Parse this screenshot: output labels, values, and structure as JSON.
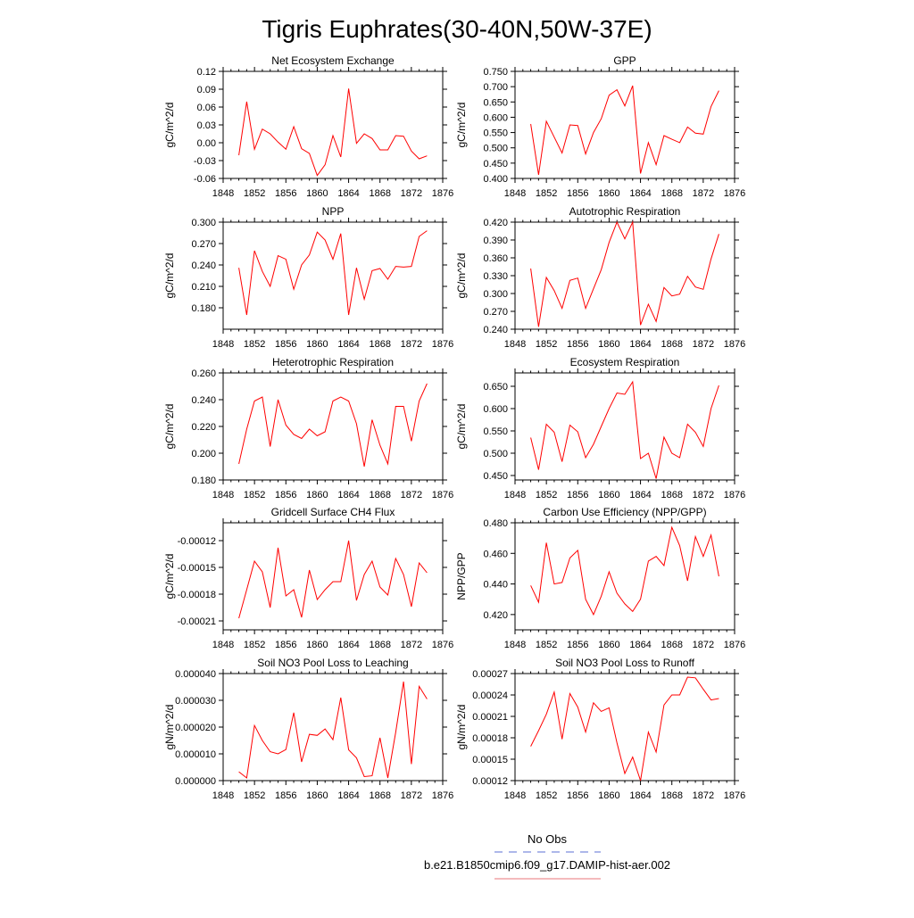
{
  "page": {
    "title": "Tigris Euphrates(30-40N,50W-37E)"
  },
  "legend": {
    "items": [
      {
        "label": "No Obs",
        "color": "#5b6fd6",
        "dash": true
      },
      {
        "label": "b.e21.B1850cmip6.f09_g17.DAMIP-hist-aer.002",
        "color": "#e8767a",
        "dash": false
      }
    ]
  },
  "chart_data": [
    {
      "type": "line",
      "title": "Net Ecosystem Exchange",
      "ylabel": "gC/m^2/d",
      "xlim": [
        1848,
        1876
      ],
      "xticks": [
        1848,
        1852,
        1856,
        1860,
        1864,
        1868,
        1872,
        1876
      ],
      "ylim": [
        -0.06,
        0.12
      ],
      "yticks": [
        "-0.06",
        "-0.03",
        "0.00",
        "0.03",
        "0.06",
        "0.09",
        "0.12"
      ],
      "series": [
        {
          "color": "#ff0000",
          "x": [
            1850,
            1851,
            1852,
            1853,
            1854,
            1855,
            1856,
            1857,
            1858,
            1859,
            1860,
            1861,
            1862,
            1863,
            1864,
            1865,
            1866,
            1867,
            1868,
            1869,
            1870,
            1871,
            1872,
            1873,
            1874
          ],
          "y": [
            -0.021,
            0.069,
            -0.011,
            0.023,
            0.015,
            0.001,
            -0.011,
            0.027,
            -0.01,
            -0.018,
            -0.055,
            -0.037,
            0.012,
            -0.024,
            0.091,
            -0.001,
            0.015,
            0.007,
            -0.012,
            -0.012,
            0.012,
            0.011,
            -0.014,
            -0.027,
            -0.022
          ]
        }
      ]
    },
    {
      "type": "line",
      "title": "GPP",
      "ylabel": "gC/m^2/d",
      "xlim": [
        1848,
        1876
      ],
      "xticks": [
        1848,
        1852,
        1856,
        1860,
        1864,
        1868,
        1872,
        1876
      ],
      "ylim": [
        0.4,
        0.75
      ],
      "yticks": [
        "0.400",
        "0.450",
        "0.500",
        "0.550",
        "0.600",
        "0.650",
        "0.700",
        "0.750"
      ],
      "series": [
        {
          "color": "#ff0000",
          "x": [
            1850,
            1851,
            1852,
            1853,
            1854,
            1855,
            1856,
            1857,
            1858,
            1859,
            1860,
            1861,
            1862,
            1863,
            1864,
            1865,
            1866,
            1867,
            1868,
            1869,
            1870,
            1871,
            1872,
            1873,
            1874
          ],
          "y": [
            0.578,
            0.412,
            0.587,
            0.535,
            0.483,
            0.575,
            0.573,
            0.48,
            0.55,
            0.595,
            0.672,
            0.69,
            0.637,
            0.703,
            0.416,
            0.517,
            0.445,
            0.54,
            0.528,
            0.517,
            0.568,
            0.548,
            0.545,
            0.635,
            0.687
          ]
        }
      ]
    },
    {
      "type": "line",
      "title": "NPP",
      "ylabel": "gC/m^2/d",
      "xlim": [
        1848,
        1876
      ],
      "xticks": [
        1848,
        1852,
        1856,
        1860,
        1864,
        1868,
        1872,
        1876
      ],
      "ylim": [
        0.15,
        0.3
      ],
      "yticks": [
        "0.180",
        "0.210",
        "0.240",
        "0.270",
        "0.300"
      ],
      "series": [
        {
          "color": "#ff0000",
          "x": [
            1850,
            1851,
            1852,
            1853,
            1854,
            1855,
            1856,
            1857,
            1858,
            1859,
            1860,
            1861,
            1862,
            1863,
            1864,
            1865,
            1866,
            1867,
            1868,
            1869,
            1870,
            1871,
            1872,
            1873,
            1874
          ],
          "y": [
            0.236,
            0.17,
            0.26,
            0.231,
            0.21,
            0.253,
            0.248,
            0.206,
            0.24,
            0.254,
            0.286,
            0.275,
            0.248,
            0.284,
            0.17,
            0.236,
            0.192,
            0.232,
            0.235,
            0.22,
            0.238,
            0.237,
            0.238,
            0.28,
            0.288
          ]
        }
      ]
    },
    {
      "type": "line",
      "title": "Autotrophic Respiration",
      "ylabel": "gC/m^2/d",
      "xlim": [
        1848,
        1876
      ],
      "xticks": [
        1848,
        1852,
        1856,
        1860,
        1864,
        1868,
        1872,
        1876
      ],
      "ylim": [
        0.24,
        0.42
      ],
      "yticks": [
        "0.240",
        "0.270",
        "0.300",
        "0.330",
        "0.360",
        "0.390",
        "0.420"
      ],
      "series": [
        {
          "color": "#ff0000",
          "x": [
            1850,
            1851,
            1852,
            1853,
            1854,
            1855,
            1856,
            1857,
            1858,
            1859,
            1860,
            1861,
            1862,
            1863,
            1864,
            1865,
            1866,
            1867,
            1868,
            1869,
            1870,
            1871,
            1872,
            1873,
            1874
          ],
          "y": [
            0.342,
            0.244,
            0.327,
            0.305,
            0.275,
            0.322,
            0.326,
            0.275,
            0.308,
            0.34,
            0.386,
            0.42,
            0.392,
            0.42,
            0.247,
            0.282,
            0.253,
            0.31,
            0.296,
            0.299,
            0.329,
            0.311,
            0.307,
            0.358,
            0.4
          ]
        }
      ]
    },
    {
      "type": "line",
      "title": "Heterotrophic Respiration",
      "ylabel": "gC/m^2/d",
      "xlim": [
        1848,
        1876
      ],
      "xticks": [
        1848,
        1852,
        1856,
        1860,
        1864,
        1868,
        1872,
        1876
      ],
      "ylim": [
        0.18,
        0.26
      ],
      "yticks": [
        "0.180",
        "0.200",
        "0.220",
        "0.240",
        "0.260"
      ],
      "series": [
        {
          "color": "#ff0000",
          "x": [
            1850,
            1851,
            1852,
            1853,
            1854,
            1855,
            1856,
            1857,
            1858,
            1859,
            1860,
            1861,
            1862,
            1863,
            1864,
            1865,
            1866,
            1867,
            1868,
            1869,
            1870,
            1871,
            1872,
            1873,
            1874
          ],
          "y": [
            0.192,
            0.218,
            0.239,
            0.242,
            0.205,
            0.24,
            0.221,
            0.214,
            0.211,
            0.218,
            0.213,
            0.216,
            0.239,
            0.242,
            0.239,
            0.222,
            0.19,
            0.225,
            0.206,
            0.192,
            0.235,
            0.235,
            0.209,
            0.239,
            0.252
          ]
        }
      ]
    },
    {
      "type": "line",
      "title": "Ecosystem Respiration",
      "ylabel": "gC/m^2/d",
      "xlim": [
        1848,
        1876
      ],
      "xticks": [
        1848,
        1852,
        1856,
        1860,
        1864,
        1868,
        1872,
        1876
      ],
      "ylim": [
        0.44,
        0.68
      ],
      "yticks": [
        "0.450",
        "0.500",
        "0.550",
        "0.600",
        "0.650"
      ],
      "series": [
        {
          "color": "#ff0000",
          "x": [
            1850,
            1851,
            1852,
            1853,
            1854,
            1855,
            1856,
            1857,
            1858,
            1859,
            1860,
            1861,
            1862,
            1863,
            1864,
            1865,
            1866,
            1867,
            1868,
            1869,
            1870,
            1871,
            1872,
            1873,
            1874
          ],
          "y": [
            0.535,
            0.463,
            0.565,
            0.547,
            0.481,
            0.563,
            0.548,
            0.49,
            0.52,
            0.56,
            0.6,
            0.635,
            0.632,
            0.66,
            0.488,
            0.5,
            0.443,
            0.536,
            0.5,
            0.49,
            0.565,
            0.547,
            0.515,
            0.6,
            0.652
          ]
        }
      ]
    },
    {
      "type": "line",
      "title": "Gridcell Surface CH4 Flux",
      "ylabel": "gC/m^2/d",
      "xlim": [
        1848,
        1876
      ],
      "xticks": [
        1848,
        1852,
        1856,
        1860,
        1864,
        1868,
        1872,
        1876
      ],
      "ylim": [
        -0.00022,
        -0.0001
      ],
      "yticks": [
        "-0.00021",
        "-0.00018",
        "-0.00015",
        "-0.00012"
      ],
      "series": [
        {
          "color": "#ff0000",
          "x": [
            1850,
            1851,
            1852,
            1853,
            1854,
            1855,
            1856,
            1857,
            1858,
            1859,
            1860,
            1861,
            1862,
            1863,
            1864,
            1865,
            1866,
            1867,
            1868,
            1869,
            1870,
            1871,
            1872,
            1873,
            1874
          ],
          "y": [
            -0.000207,
            -0.000175,
            -0.000143,
            -0.000155,
            -0.000195,
            -0.000128,
            -0.000182,
            -0.000175,
            -0.000206,
            -0.000153,
            -0.000186,
            -0.000175,
            -0.000166,
            -0.000166,
            -0.00012,
            -0.000187,
            -0.000158,
            -0.000143,
            -0.000172,
            -0.000181,
            -0.00014,
            -0.000158,
            -0.000194,
            -0.000145,
            -0.000156
          ]
        }
      ]
    },
    {
      "type": "line",
      "title": "Carbon Use Efficiency (NPP/GPP)",
      "ylabel": "NPP/GPP",
      "xlim": [
        1848,
        1876
      ],
      "xticks": [
        1848,
        1852,
        1856,
        1860,
        1864,
        1868,
        1872,
        1876
      ],
      "ylim": [
        0.41,
        0.48
      ],
      "yticks": [
        "0.420",
        "0.440",
        "0.460",
        "0.480"
      ],
      "series": [
        {
          "color": "#ff0000",
          "x": [
            1850,
            1851,
            1852,
            1853,
            1854,
            1855,
            1856,
            1857,
            1858,
            1859,
            1860,
            1861,
            1862,
            1863,
            1864,
            1865,
            1866,
            1867,
            1868,
            1869,
            1870,
            1871,
            1872,
            1873,
            1874
          ],
          "y": [
            0.439,
            0.428,
            0.467,
            0.44,
            0.441,
            0.457,
            0.462,
            0.43,
            0.42,
            0.432,
            0.448,
            0.434,
            0.427,
            0.422,
            0.43,
            0.455,
            0.458,
            0.452,
            0.477,
            0.465,
            0.442,
            0.471,
            0.458,
            0.472,
            0.445
          ]
        }
      ]
    },
    {
      "type": "line",
      "title": "Soil NO3 Pool Loss to Leaching",
      "ylabel": "gN/m^2/d",
      "xlim": [
        1848,
        1876
      ],
      "xticks": [
        1848,
        1852,
        1856,
        1860,
        1864,
        1868,
        1872,
        1876
      ],
      "ylim": [
        0,
        4e-05
      ],
      "yticks": [
        "0.000000",
        "0.000010",
        "0.000020",
        "0.000030",
        "0.000040"
      ],
      "series": [
        {
          "color": "#ff0000",
          "x": [
            1850,
            1851,
            1852,
            1853,
            1854,
            1855,
            1856,
            1857,
            1858,
            1859,
            1860,
            1861,
            1862,
            1863,
            1864,
            1865,
            1866,
            1867,
            1868,
            1869,
            1870,
            1871,
            1872,
            1873,
            1874
          ],
          "y": [
            3.3e-06,
            1e-06,
            2.06e-05,
            1.5e-05,
            1.08e-05,
            1e-05,
            1.16e-05,
            2.54e-05,
            7e-06,
            1.73e-05,
            1.69e-05,
            1.93e-05,
            1.53e-05,
            3.1e-05,
            1.15e-05,
            8.5e-06,
            1.5e-06,
            1.8e-06,
            1.6e-05,
            1e-06,
            1.8e-05,
            3.7e-05,
            6.2e-06,
            3.52e-05,
            3.05e-05
          ]
        }
      ]
    },
    {
      "type": "line",
      "title": "Soil NO3 Pool Loss to Runoff",
      "ylabel": "gN/m^2/d",
      "xlim": [
        1848,
        1876
      ],
      "xticks": [
        1848,
        1852,
        1856,
        1860,
        1864,
        1868,
        1872,
        1876
      ],
      "ylim": [
        0.00012,
        0.00027
      ],
      "yticks": [
        "0.00012",
        "0.00015",
        "0.00018",
        "0.00021",
        "0.00024",
        "0.00027"
      ],
      "series": [
        {
          "color": "#ff0000",
          "x": [
            1850,
            1851,
            1852,
            1853,
            1854,
            1855,
            1856,
            1857,
            1858,
            1859,
            1860,
            1861,
            1862,
            1863,
            1864,
            1865,
            1866,
            1867,
            1868,
            1869,
            1870,
            1871,
            1872,
            1873,
            1874
          ],
          "y": [
            0.000168,
            0.00019,
            0.000213,
            0.000244,
            0.000178,
            0.000242,
            0.000223,
            0.000188,
            0.000229,
            0.000217,
            0.000222,
            0.000173,
            0.00013,
            0.000153,
            0.00012,
            0.000188,
            0.00016,
            0.000226,
            0.00024,
            0.00024,
            0.000265,
            0.000264,
            0.000248,
            0.000233,
            0.000235
          ]
        }
      ]
    }
  ]
}
